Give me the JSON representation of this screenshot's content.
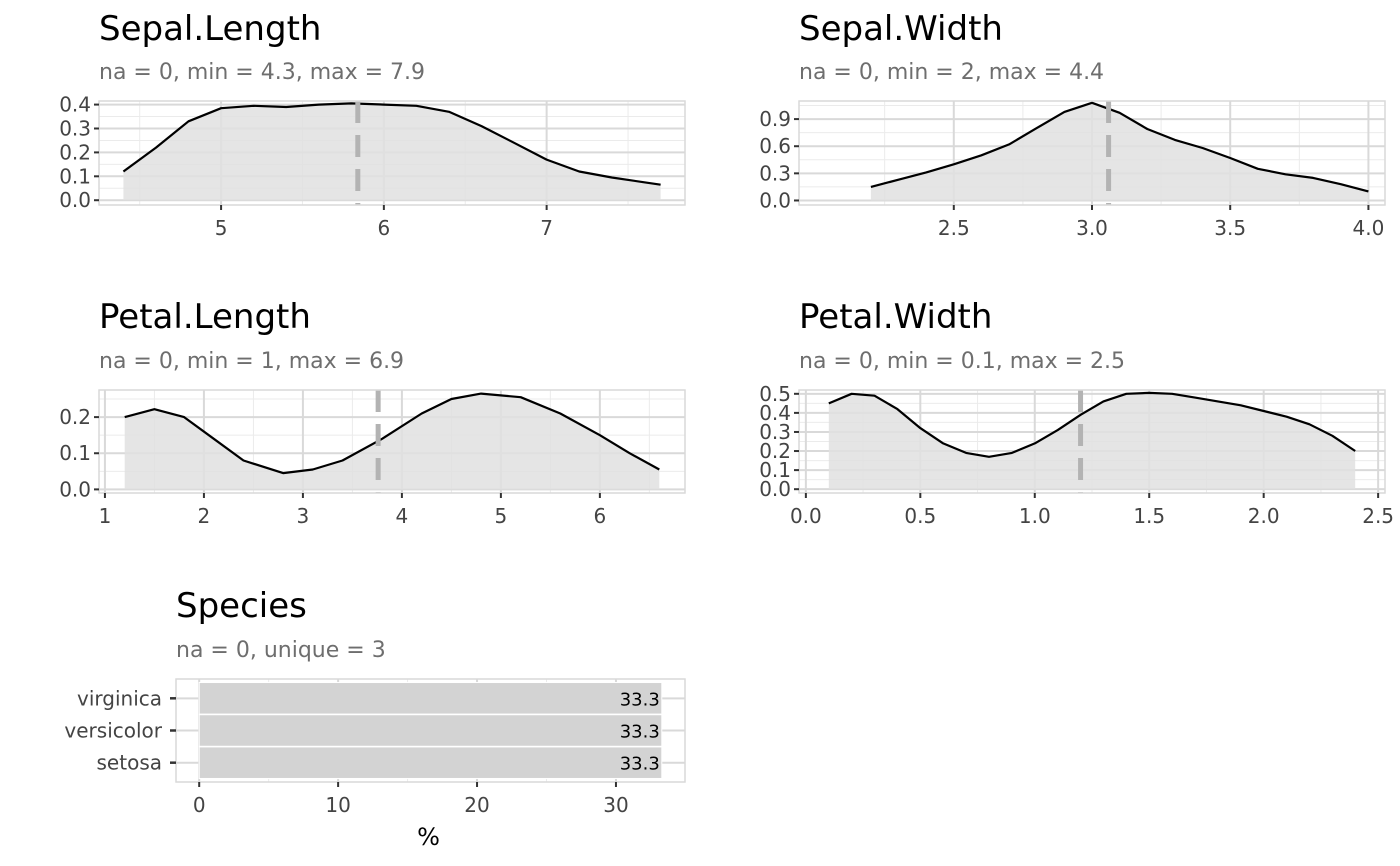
{
  "colors": {
    "panel_bg": "#ffffff",
    "panel_border": "#d9d9d9",
    "grid_major": "#d9d9d9",
    "grid_minor": "#ebebeb",
    "density_fill": "#e0e0e0",
    "density_line": "#000000",
    "mean_line": "#b3b3b3",
    "bar_fill": "#d3d3d3",
    "tick_text": "#444444"
  },
  "chart_data": [
    {
      "type": "area",
      "title": "Sepal.Length",
      "subtitle": "na = 0, min = 4.3, max = 7.9",
      "xlim": [
        4.25,
        7.85
      ],
      "ylim": [
        -0.02,
        0.415
      ],
      "x_ticks": [
        5,
        6,
        7
      ],
      "y_ticks": [
        0.0,
        0.1,
        0.2,
        0.3,
        0.4
      ],
      "y_tick_labels": [
        "0.0",
        "0.1",
        "0.2",
        "0.3",
        "0.4"
      ],
      "mean": 5.84,
      "x": [
        4.4,
        4.6,
        4.8,
        5.0,
        5.2,
        5.4,
        5.6,
        5.8,
        6.0,
        6.2,
        6.4,
        6.6,
        6.8,
        7.0,
        7.2,
        7.4,
        7.6,
        7.7
      ],
      "y": [
        0.12,
        0.22,
        0.33,
        0.385,
        0.395,
        0.39,
        0.4,
        0.405,
        0.4,
        0.395,
        0.37,
        0.31,
        0.24,
        0.17,
        0.12,
        0.095,
        0.075,
        0.065
      ]
    },
    {
      "type": "area",
      "title": "Sepal.Width",
      "subtitle": "na = 0, min = 2, max = 4.4",
      "xlim": [
        1.94,
        4.06
      ],
      "ylim": [
        -0.05,
        1.1
      ],
      "x_ticks": [
        2.5,
        3.0,
        3.5,
        4.0
      ],
      "x_tick_labels": [
        "2.5",
        "3.0",
        "3.5",
        "4.0"
      ],
      "y_ticks": [
        0.0,
        0.3,
        0.6,
        0.9
      ],
      "y_tick_labels": [
        "0.0",
        "0.3",
        "0.6",
        "0.9"
      ],
      "mean": 3.06,
      "x": [
        2.2,
        2.3,
        2.4,
        2.5,
        2.6,
        2.7,
        2.8,
        2.9,
        3.0,
        3.1,
        3.2,
        3.3,
        3.4,
        3.5,
        3.6,
        3.7,
        3.8,
        3.9,
        4.0
      ],
      "y": [
        0.15,
        0.23,
        0.31,
        0.4,
        0.5,
        0.62,
        0.8,
        0.98,
        1.08,
        0.97,
        0.79,
        0.67,
        0.58,
        0.47,
        0.35,
        0.29,
        0.25,
        0.18,
        0.1
      ]
    },
    {
      "type": "area",
      "title": "Petal.Length",
      "subtitle": "na = 0, min = 1, max = 6.9",
      "xlim": [
        0.94,
        6.86
      ],
      "ylim": [
        -0.01,
        0.275
      ],
      "x_ticks": [
        1,
        2,
        3,
        4,
        5,
        6
      ],
      "y_ticks": [
        0.0,
        0.1,
        0.2
      ],
      "y_tick_labels": [
        "0.0",
        "0.1",
        "0.2"
      ],
      "mean": 3.76,
      "x": [
        1.2,
        1.5,
        1.8,
        2.1,
        2.4,
        2.8,
        3.1,
        3.4,
        3.8,
        4.2,
        4.5,
        4.8,
        5.2,
        5.6,
        6.0,
        6.3,
        6.6
      ],
      "y": [
        0.2,
        0.222,
        0.2,
        0.14,
        0.08,
        0.045,
        0.055,
        0.08,
        0.14,
        0.21,
        0.25,
        0.265,
        0.255,
        0.21,
        0.15,
        0.1,
        0.055
      ]
    },
    {
      "type": "area",
      "title": "Petal.Width",
      "subtitle": "na = 0, min = 0.1, max = 2.5",
      "xlim": [
        -0.03,
        2.53
      ],
      "ylim": [
        -0.02,
        0.52
      ],
      "x_ticks": [
        0.0,
        0.5,
        1.0,
        1.5,
        2.0,
        2.5
      ],
      "x_tick_labels": [
        "0.0",
        "0.5",
        "1.0",
        "1.5",
        "2.0",
        "2.5"
      ],
      "y_ticks": [
        0.0,
        0.1,
        0.2,
        0.3,
        0.4,
        0.5
      ],
      "y_tick_labels": [
        "0.0",
        "0.1",
        "0.2",
        "0.3",
        "0.4",
        "0.5"
      ],
      "mean": 1.2,
      "x": [
        0.1,
        0.2,
        0.3,
        0.4,
        0.5,
        0.6,
        0.7,
        0.8,
        0.9,
        1.0,
        1.1,
        1.2,
        1.3,
        1.4,
        1.5,
        1.6,
        1.7,
        1.8,
        1.9,
        2.0,
        2.1,
        2.2,
        2.3,
        2.4
      ],
      "y": [
        0.45,
        0.5,
        0.49,
        0.42,
        0.32,
        0.24,
        0.19,
        0.17,
        0.19,
        0.24,
        0.31,
        0.39,
        0.46,
        0.5,
        0.505,
        0.5,
        0.48,
        0.46,
        0.44,
        0.41,
        0.38,
        0.34,
        0.28,
        0.2
      ]
    },
    {
      "type": "bar",
      "orientation": "horizontal",
      "title": "Species",
      "subtitle": "na = 0, unique = 3",
      "categories": [
        "virginica",
        "versicolor",
        "setosa"
      ],
      "values": [
        33.3,
        33.3,
        33.3
      ],
      "value_labels": [
        "33.3",
        "33.3",
        "33.3"
      ],
      "xlim": [
        -1.67,
        34.97
      ],
      "x_ticks": [
        0,
        10,
        20,
        30
      ],
      "xlabel": "%"
    }
  ]
}
